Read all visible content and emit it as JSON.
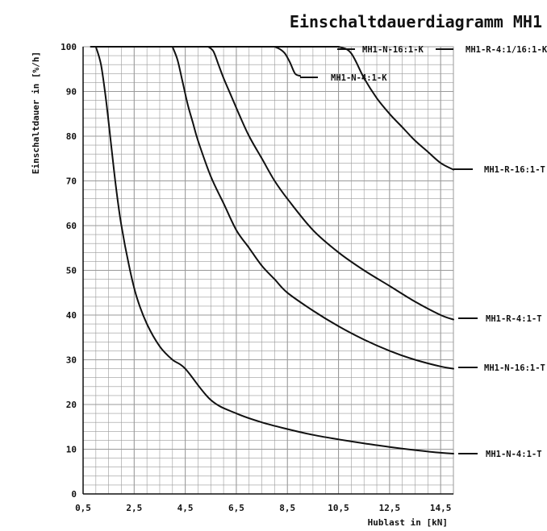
{
  "chart_data": {
    "type": "line",
    "title": "Einschaltdauerdiagramm MH1",
    "xlabel": "Hublast in [kN]",
    "ylabel": "Einschaltdauer in [%/h]",
    "xlim": [
      0.5,
      15.0
    ],
    "ylim": [
      0,
      100
    ],
    "x_ticks": [
      "0,5",
      "2,5",
      "4,5",
      "6,5",
      "8,5",
      "10,5",
      "12,5",
      "14,5"
    ],
    "x_tick_values": [
      0.5,
      2.5,
      4.5,
      6.5,
      8.5,
      10.5,
      12.5,
      14.5
    ],
    "y_ticks": [
      "0",
      "10",
      "20",
      "30",
      "40",
      "50",
      "60",
      "70",
      "80",
      "90",
      "100"
    ],
    "y_tick_values": [
      0,
      10,
      20,
      30,
      40,
      50,
      60,
      70,
      80,
      90,
      100
    ],
    "grid": true,
    "series": [
      {
        "name": "MH1-N-4:1-T",
        "x": [
          1.0,
          1.2,
          1.4,
          1.6,
          1.8,
          2.0,
          2.3,
          2.6,
          3.0,
          3.5,
          4.0,
          4.5,
          5.5,
          6.5,
          7.5,
          8.5,
          9.5,
          10.5,
          11.5,
          12.5,
          13.5,
          14.5,
          15.0
        ],
        "y": [
          100,
          96,
          88,
          78,
          68,
          60,
          51,
          44,
          38,
          33,
          30,
          28,
          21,
          18,
          16,
          14.5,
          13.2,
          12.2,
          11.3,
          10.5,
          9.8,
          9.2,
          9.0
        ]
      },
      {
        "name": "MH1-N-16:1-T",
        "x": [
          4.0,
          4.2,
          4.4,
          4.6,
          4.8,
          5.0,
          5.5,
          6.0,
          6.5,
          7.0,
          7.5,
          8.0,
          8.5,
          9.5,
          10.5,
          11.5,
          12.5,
          13.5,
          14.5,
          15.0
        ],
        "y": [
          100,
          97,
          92,
          87,
          83,
          79,
          71,
          65,
          59,
          55,
          51,
          48,
          45,
          41,
          37.5,
          34.5,
          32,
          30,
          28.5,
          28.0
        ]
      },
      {
        "name": "MH1-R-4:1-T",
        "x": [
          5.4,
          5.6,
          5.8,
          6.0,
          6.3,
          6.6,
          7.0,
          7.5,
          8.0,
          8.5,
          9.5,
          10.5,
          11.5,
          12.5,
          13.5,
          14.5,
          15.0
        ],
        "y": [
          100,
          99,
          96,
          93,
          89,
          85,
          80,
          75,
          70,
          66,
          59,
          54,
          50,
          46.5,
          43,
          40,
          39.0
        ]
      },
      {
        "name": "MH1-N-4:1-K",
        "x": [
          8.0,
          8.2,
          8.4,
          8.6,
          8.8,
          9.0
        ],
        "y": [
          100,
          99.5,
          98.5,
          96.5,
          94,
          93.5
        ]
      },
      {
        "name": "MH1-N-16:1-K",
        "x": [
          0.8,
          9.8
        ],
        "y": [
          100,
          100
        ]
      },
      {
        "name": "MH1-R-4:1/16:1-K",
        "x": [
          9.8,
          10.5
        ],
        "y": [
          100,
          100
        ]
      },
      {
        "name": "MH1-R-16:1-T",
        "x": [
          10.5,
          10.8,
          11.0,
          11.2,
          11.5,
          12.0,
          12.5,
          13.0,
          13.5,
          14.0,
          14.5,
          15.0
        ],
        "y": [
          100,
          99.5,
          98.5,
          96.5,
          93,
          88.5,
          85,
          82,
          79,
          76.5,
          74,
          72.5
        ]
      }
    ],
    "series_labels": [
      {
        "text": "MH1-N-16:1-K",
        "series": "MH1-N-16:1-K"
      },
      {
        "text": "MH1-R-4:1/16:1-K",
        "series": "MH1-R-4:1/16:1-K"
      },
      {
        "text": "MH1-N-4:1-K",
        "series": "MH1-N-4:1-K"
      },
      {
        "text": "MH1-R-16:1-T",
        "series": "MH1-R-16:1-T"
      },
      {
        "text": "MH1-R-4:1-T",
        "series": "MH1-R-4:1-T"
      },
      {
        "text": "MH1-N-16:1-T",
        "series": "MH1-N-16:1-T"
      },
      {
        "text": "MH1-N-4:1-T",
        "series": "MH1-N-4:1-T"
      }
    ],
    "colors": {
      "curve": "#111111",
      "grid": "#9a9a9a",
      "frame": "#111111"
    }
  }
}
